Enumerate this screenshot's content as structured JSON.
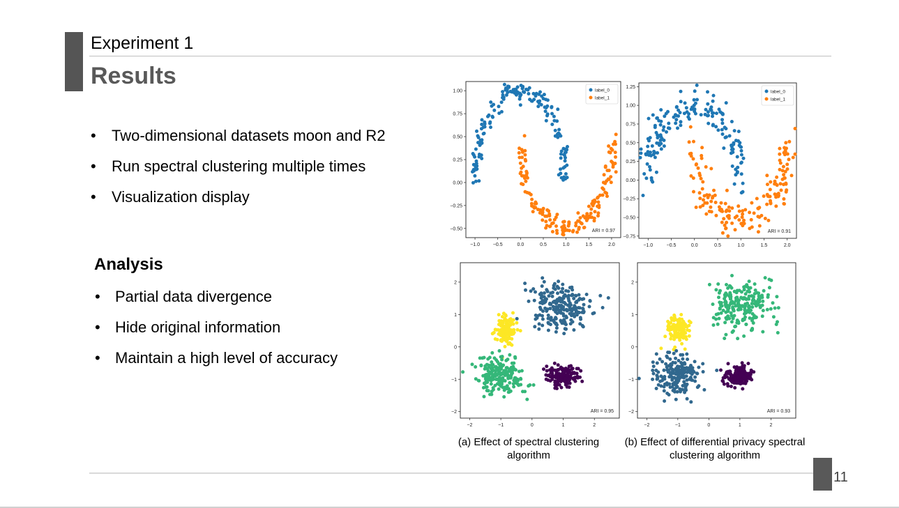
{
  "slide": {
    "kicker": "Experiment 1",
    "title": "Results",
    "bullet_glyph": "•",
    "bullets": [
      "Two-dimensional datasets moon and R2",
      "Run spectral clustering multiple times",
      "Visualization display"
    ],
    "analysis": {
      "heading": "Analysis",
      "items": [
        "Partial data divergence",
        "Hide original information",
        "Maintain a high level of accuracy"
      ]
    },
    "captions": {
      "a": "(a) Effect of spectral clustering algorithm",
      "b": "(b) Effect of differential privacy spectral clustering algorithm"
    },
    "page_number": "11"
  },
  "colors": {
    "accent": "#555555",
    "title_text": "#595959",
    "label_0": "#1f77b4",
    "label_1": "#ff7f0e",
    "cluster_purple": "#440154",
    "cluster_blue": "#31688e",
    "cluster_green": "#35b779",
    "cluster_yellow": "#fde725"
  },
  "chart_data": [
    {
      "type": "scatter",
      "dataset": "moon",
      "xlim": [
        -1.2,
        2.2
      ],
      "ylim": [
        -0.6,
        1.1
      ],
      "xticks": [
        -1.0,
        -0.5,
        0.0,
        0.5,
        1.0,
        1.5,
        2.0
      ],
      "xtick_labels": [
        "−1.0",
        "−0.5",
        "0.0",
        "0.5",
        "1.0",
        "1.5",
        "2.0"
      ],
      "yticks": [
        1.0,
        0.75,
        0.5,
        0.25,
        0.0,
        -0.25,
        -0.5
      ],
      "ytick_labels": [
        "1.00",
        "0.75",
        "0.50",
        "0.25",
        "0.00",
        "−0.25",
        "−0.50"
      ],
      "legend": [
        "label_0",
        "label_1"
      ],
      "legend_position": "top-right",
      "annotation": "ARI = 0.97",
      "series": [
        {
          "name": "label_0",
          "shape": "upper_moon",
          "count": 170,
          "noise": 0.055
        },
        {
          "name": "label_1",
          "shape": "lower_moon",
          "count": 170,
          "noise": 0.055
        }
      ]
    },
    {
      "type": "scatter",
      "dataset": "moon",
      "xlim": [
        -1.2,
        2.2
      ],
      "ylim": [
        -0.78,
        1.3
      ],
      "xticks": [
        -1.0,
        -0.5,
        0.0,
        0.5,
        1.0,
        1.5,
        2.0
      ],
      "xtick_labels": [
        "−1.0",
        "−0.5",
        "0.0",
        "0.5",
        "1.0",
        "1.5",
        "2.0"
      ],
      "yticks": [
        1.25,
        1.0,
        0.75,
        0.5,
        0.25,
        0.0,
        -0.25,
        -0.5,
        -0.75
      ],
      "ytick_labels": [
        "1.25",
        "1.00",
        "0.75",
        "0.50",
        "0.25",
        "0.00",
        "−0.25",
        "−0.50",
        "−0.75"
      ],
      "legend": [
        "label_0",
        "label_1"
      ],
      "legend_position": "top-right",
      "annotation": "ARI = 0.91",
      "series": [
        {
          "name": "label_0",
          "shape": "upper_moon",
          "count": 170,
          "noise": 0.11
        },
        {
          "name": "label_1",
          "shape": "lower_moon",
          "count": 170,
          "noise": 0.11
        }
      ]
    },
    {
      "type": "scatter",
      "dataset": "R2",
      "xlim": [
        -2.3,
        2.8
      ],
      "ylim": [
        -2.2,
        2.6
      ],
      "xticks": [
        -2,
        -1,
        0,
        1,
        2
      ],
      "xtick_labels": [
        "−2",
        "−1",
        "0",
        "1",
        "2"
      ],
      "yticks": [
        2,
        1,
        0,
        -1,
        -2
      ],
      "ytick_labels": [
        "2",
        "1",
        "0",
        "−1",
        "−2"
      ],
      "annotation": "ARI = 0.95",
      "series": [
        {
          "cluster": "blue",
          "center": [
            0.95,
            1.25
          ],
          "spread": [
            0.5,
            0.38
          ],
          "count": 230
        },
        {
          "cluster": "yellow",
          "center": [
            -0.85,
            0.55
          ],
          "spread": [
            0.17,
            0.22
          ],
          "count": 130
        },
        {
          "cluster": "green",
          "center": [
            -1.0,
            -0.9
          ],
          "spread": [
            0.38,
            0.28
          ],
          "count": 200
        },
        {
          "cluster": "purple",
          "center": [
            0.95,
            -0.9
          ],
          "spread": [
            0.25,
            0.15
          ],
          "count": 160
        }
      ]
    },
    {
      "type": "scatter",
      "dataset": "R2",
      "xlim": [
        -2.3,
        2.8
      ],
      "ylim": [
        -2.2,
        2.6
      ],
      "xticks": [
        -2,
        -1,
        0,
        1,
        2
      ],
      "xtick_labels": [
        "−2",
        "−1",
        "0",
        "1",
        "2"
      ],
      "yticks": [
        2,
        1,
        0,
        -1,
        -2
      ],
      "ytick_labels": [
        "2",
        "1",
        "0",
        "−1",
        "−2"
      ],
      "annotation": "ARI = 0.93",
      "series": [
        {
          "cluster": "green",
          "center": [
            1.05,
            1.25
          ],
          "spread": [
            0.5,
            0.4
          ],
          "count": 230
        },
        {
          "cluster": "yellow",
          "center": [
            -1.0,
            0.55
          ],
          "spread": [
            0.17,
            0.22
          ],
          "count": 130
        },
        {
          "cluster": "blue",
          "center": [
            -1.0,
            -0.9
          ],
          "spread": [
            0.38,
            0.3
          ],
          "count": 200
        },
        {
          "cluster": "purple",
          "center": [
            0.95,
            -0.9
          ],
          "spread": [
            0.25,
            0.15
          ],
          "count": 160
        }
      ]
    }
  ]
}
